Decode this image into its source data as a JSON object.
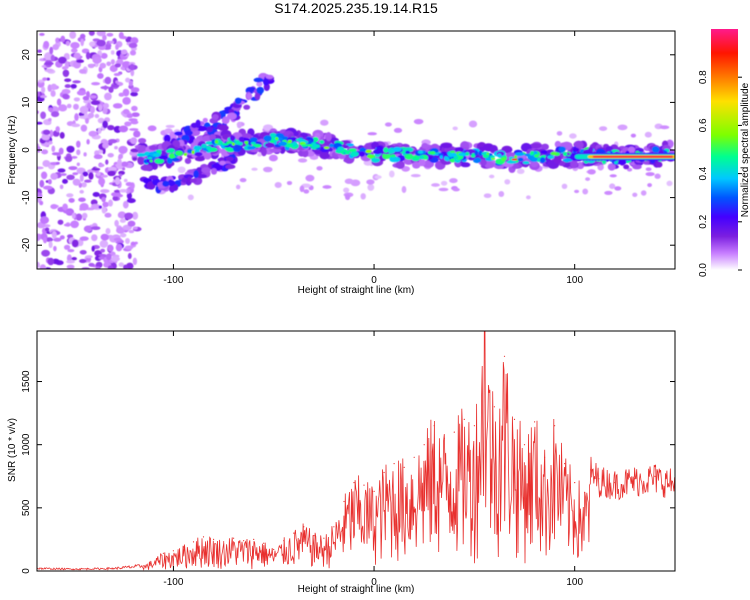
{
  "colors": {
    "background": "#ffffff",
    "axis": "#000000",
    "snr_line": "#e8302e",
    "colormap": [
      "#ffffff",
      "#c77dff",
      "#7b1fe0",
      "#4400ff",
      "#0055ff",
      "#00c8ff",
      "#00ff90",
      "#7dff00",
      "#ffe000",
      "#ff7a00",
      "#ff1500",
      "#ff1a8c"
    ]
  },
  "chart_data": [
    {
      "type": "heatmap",
      "title": "S174.2025.235.19.14.R15",
      "xlabel": "Height of straight line (km)",
      "ylabel": "Frequency (Hz)",
      "xlim": [
        -168,
        150
      ],
      "ylim": [
        -25,
        25
      ],
      "xticks": [
        -100,
        0,
        100
      ],
      "yticks": [
        -20,
        -10,
        0,
        10,
        20
      ],
      "xtick_labels": [
        "-100",
        "0",
        "100"
      ],
      "ytick_labels": [
        "-20",
        "-10",
        "0",
        "10",
        "20"
      ],
      "colorbar": {
        "label": "Normalized spectral amplitude",
        "range": [
          0,
          1
        ],
        "ticks": [
          0.0,
          0.2,
          0.4,
          0.6,
          0.8
        ],
        "tick_labels": [
          "0.0",
          "0.2",
          "0.4",
          "0.6",
          "0.8"
        ]
      },
      "features": [
        {
          "name": "noise_region",
          "x_range": [
            -168,
            -118
          ],
          "freq_range": [
            -25,
            25
          ],
          "amplitude": 0.1
        },
        {
          "name": "main_track",
          "points": [
            [
              -115,
              -2
            ],
            [
              -100,
              -1
            ],
            [
              -80,
              1
            ],
            [
              -50,
              2
            ],
            [
              -25,
              1
            ],
            [
              0,
              -1
            ],
            [
              25,
              -1
            ],
            [
              50,
              -1
            ],
            [
              65,
              -2
            ],
            [
              85,
              -1
            ],
            [
              100,
              -1
            ],
            [
              125,
              -1.5
            ],
            [
              150,
              -0.8
            ]
          ],
          "amplitude_range": [
            0.15,
            0.9
          ]
        },
        {
          "name": "upper_branch",
          "points": [
            [
              -115,
              -2
            ],
            [
              -90,
              4
            ],
            [
              -75,
              6
            ],
            [
              -60,
              12
            ],
            [
              -50,
              16
            ]
          ],
          "amplitude_range": [
            0.08,
            0.35
          ]
        },
        {
          "name": "lower_branch",
          "points": [
            [
              -115,
              -7
            ],
            [
              -100,
              -7
            ],
            [
              -85,
              -5
            ],
            [
              -70,
              -2
            ]
          ],
          "amplitude_range": [
            0.1,
            0.35
          ]
        },
        {
          "name": "strong_tail",
          "x_range": [
            108,
            150
          ],
          "frequency": -1.5,
          "amplitude": 0.95
        }
      ]
    },
    {
      "type": "line",
      "xlabel": "Height of straight line (km)",
      "ylabel": "SNR (10 * v/v)",
      "xlim": [
        -168,
        150
      ],
      "ylim": [
        0,
        1900
      ],
      "xticks": [
        -100,
        0,
        100
      ],
      "yticks": [
        0,
        500,
        1000,
        1500
      ],
      "xtick_labels": [
        "-100",
        "0",
        "100"
      ],
      "ytick_labels": [
        "0",
        "500",
        "1000",
        "1500"
      ],
      "series": [
        {
          "name": "SNR",
          "x": [
            -168,
            -150,
            -130,
            -115,
            -105,
            -100,
            -95,
            -90,
            -85,
            -80,
            -75,
            -70,
            -65,
            -60,
            -55,
            -50,
            -45,
            -40,
            -35,
            -30,
            -25,
            -20,
            -15,
            -10,
            -5,
            0,
            5,
            10,
            15,
            20,
            25,
            30,
            35,
            40,
            45,
            50,
            55,
            60,
            65,
            70,
            75,
            80,
            85,
            90,
            95,
            100,
            105,
            108,
            112,
            120,
            130,
            140,
            150
          ],
          "values": [
            20,
            15,
            20,
            40,
            140,
            160,
            190,
            230,
            270,
            250,
            230,
            260,
            240,
            250,
            220,
            170,
            240,
            300,
            350,
            280,
            260,
            350,
            550,
            700,
            680,
            630,
            780,
            850,
            820,
            900,
            1000,
            1150,
            1050,
            1100,
            1200,
            1150,
            1900,
            1300,
            1700,
            1200,
            1000,
            1180,
            900,
            1150,
            850,
            700,
            620,
            800,
            730,
            700,
            730,
            750,
            700
          ],
          "peak": {
            "x": 55,
            "y": 1900
          }
        }
      ]
    }
  ]
}
